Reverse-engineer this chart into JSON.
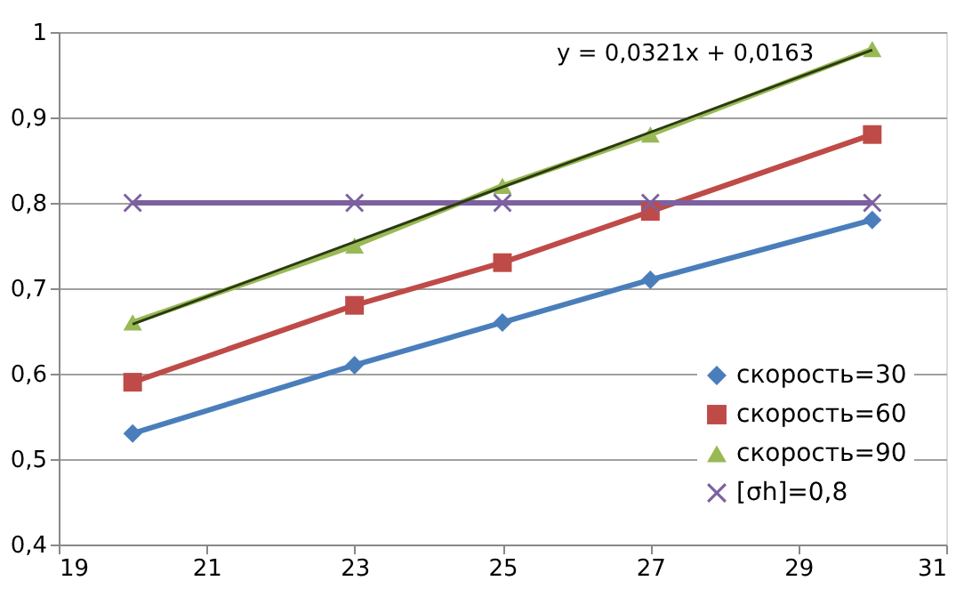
{
  "chart_data": {
    "type": "line",
    "x": [
      20,
      23,
      25,
      27,
      30
    ],
    "series": [
      {
        "name": "скорость=30",
        "color": "#4a7ebb",
        "marker": "diamond",
        "values": [
          0.53,
          0.61,
          0.66,
          0.71,
          0.78
        ]
      },
      {
        "name": "скорость=60",
        "color": "#be4b48",
        "marker": "square",
        "values": [
          0.59,
          0.68,
          0.73,
          0.79,
          0.88
        ]
      },
      {
        "name": "скорость=90",
        "color": "#98b954",
        "marker": "triangle",
        "values": [
          0.66,
          0.75,
          0.82,
          0.88,
          0.98
        ]
      },
      {
        "name": "[σh]=0,8",
        "color": "#7d60a0",
        "marker": "cross",
        "values": [
          0.8,
          0.8,
          0.8,
          0.8,
          0.8
        ]
      },
      {
        "type": "line",
        "color": "#2b3a12",
        "marker": "none",
        "x": [
          20,
          30
        ],
        "values": [
          0.658,
          0.979
        ]
      }
    ],
    "xlim": [
      19,
      31
    ],
    "xticks": [
      19,
      21,
      23,
      25,
      27,
      29,
      31
    ],
    "ylim": [
      0.4,
      1
    ],
    "yticks": [
      {
        "value": 0.4,
        "label": "0,4"
      },
      {
        "value": 0.5,
        "label": "0,5"
      },
      {
        "value": 0.6,
        "label": "0,6"
      },
      {
        "value": 0.7,
        "label": "0,7"
      },
      {
        "value": 0.8,
        "label": "0,8"
      },
      {
        "value": 0.9,
        "label": "0,9"
      },
      {
        "value": 1,
        "label": "1"
      }
    ],
    "annotations": [
      "y = 0,0321x + 0,0163"
    ],
    "grid": "y",
    "legend": "bottom right"
  }
}
